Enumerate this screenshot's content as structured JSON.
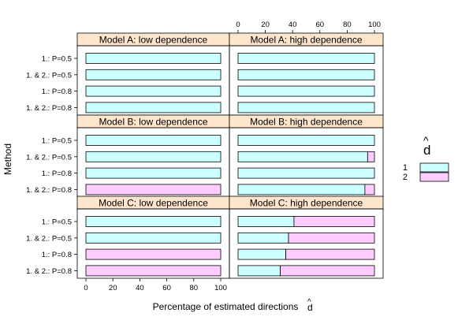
{
  "chart_data": {
    "type": "bar",
    "orientation": "horizontal",
    "stacked": true,
    "xlabel": "Percentage of estimated directions",
    "xlabel_symbol": "d",
    "xlabel_hat": "^",
    "ylabel": "Method",
    "xlim": [
      0,
      100
    ],
    "x_ticks": [
      "0",
      "20",
      "40",
      "60",
      "80",
      "100"
    ],
    "categories": [
      "1.: P=0.5",
      "1. & 2.: P=0.5",
      "1.: P=0.8",
      "1. & 2.: P=0.8"
    ],
    "legend": {
      "title_symbol": "d",
      "title_hat": "^",
      "position": "right",
      "entries": [
        {
          "label": "1",
          "color": "#ccffff"
        },
        {
          "label": "2",
          "color": "#ffccff"
        }
      ]
    },
    "strip_color": "#ffe5cc",
    "panels": [
      {
        "title": "Model A: low dependence",
        "row": 0,
        "col": 0,
        "values_1": [
          100,
          100,
          100,
          100
        ]
      },
      {
        "title": "Model A: high dependence",
        "row": 0,
        "col": 1,
        "values_1": [
          100,
          100,
          100,
          100
        ]
      },
      {
        "title": "Model B: low dependence",
        "row": 1,
        "col": 0,
        "values_1": [
          100,
          100,
          100,
          0
        ]
      },
      {
        "title": "Model B: high dependence",
        "row": 1,
        "col": 1,
        "values_1": [
          100,
          95,
          100,
          93
        ]
      },
      {
        "title": "Model C: low dependence",
        "row": 2,
        "col": 0,
        "values_1": [
          100,
          100,
          0,
          0
        ]
      },
      {
        "title": "Model C: high dependence",
        "row": 2,
        "col": 1,
        "values_1": [
          41,
          37,
          35,
          31
        ]
      }
    ]
  }
}
